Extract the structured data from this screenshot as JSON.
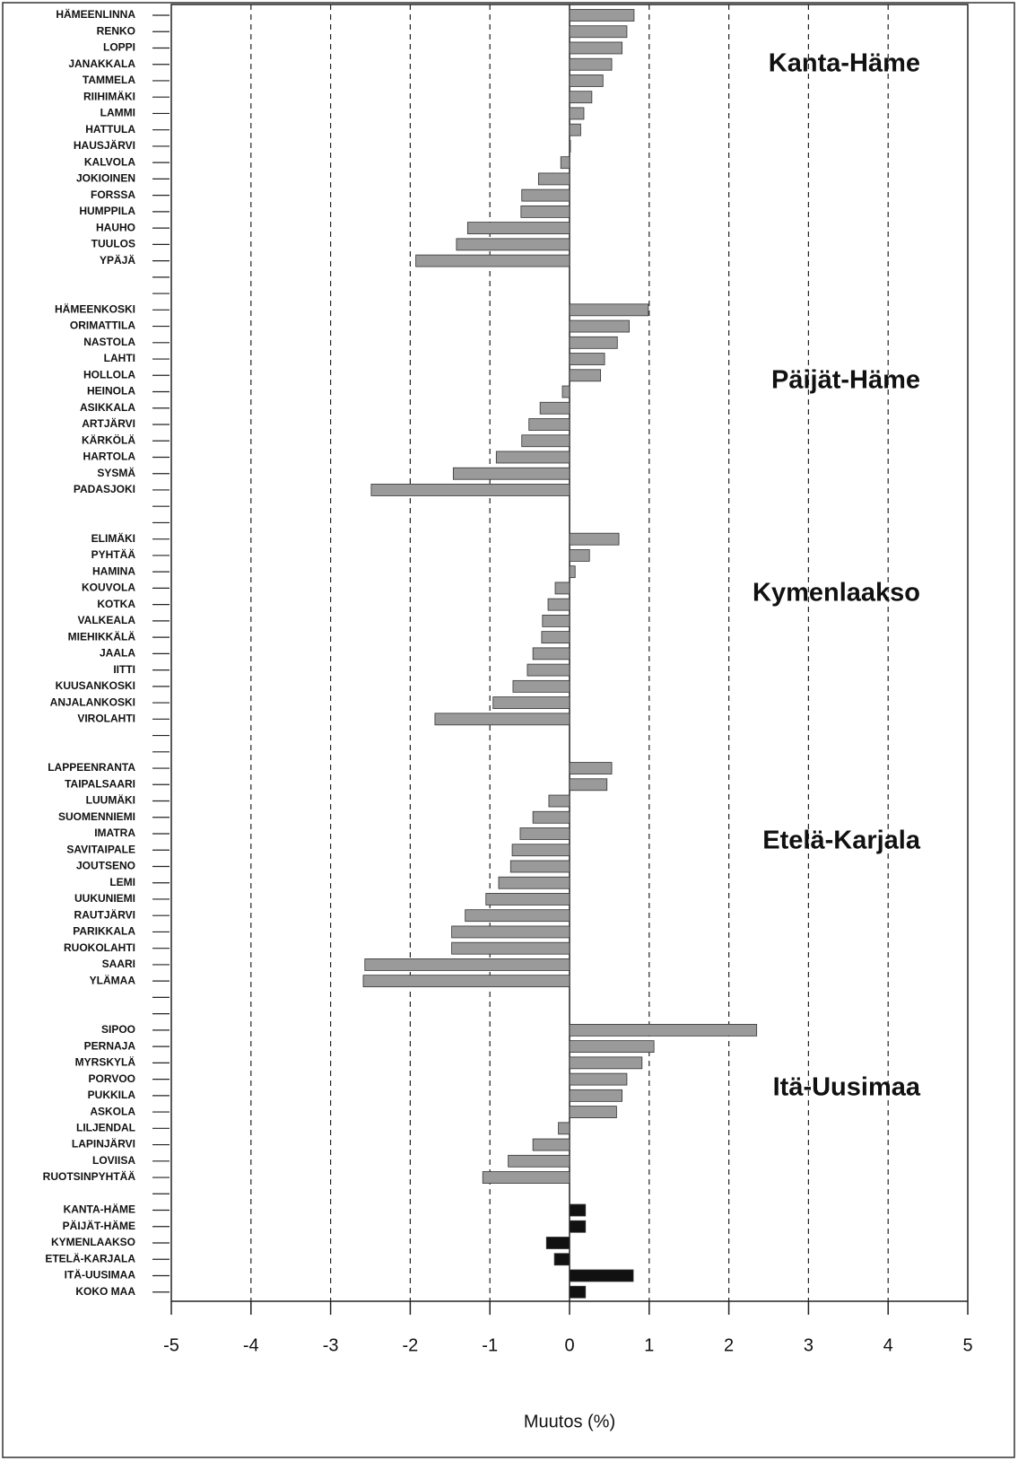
{
  "chart_data": {
    "type": "bar",
    "orientation": "horizontal",
    "xlabel": "Muutos (%)",
    "annotations": [
      "Kanta-Häme",
      "Päijät-Häme",
      "Kymenlaakso",
      "Etelä-Karjala",
      "Itä-Uusimaa"
    ],
    "categories": [
      "HÄMEENLINNA",
      "RENKO",
      "LOPPI",
      "JANAKKALA",
      "TAMMELA",
      "RIIHIMÄKI",
      "LAMMI",
      "HATTULA",
      "HAUSJÄRVI",
      "KALVOLA",
      "JOKIOINEN",
      "FORSSA",
      "HUMPPILA",
      "HAUHO",
      "TUULOS",
      "YPÄJÄ",
      null,
      null,
      "HÄMEENKOSKI",
      "ORIMATTILA",
      "NASTOLA",
      "LAHTI",
      "HOLLOLA",
      "HEINOLA",
      "ASIKKALA",
      "ARTJÄRVI",
      "KÄRKÖLÄ",
      "HARTOLA",
      "SYSMÄ",
      "PADASJOKI",
      null,
      null,
      "ELIMÄKI",
      "PYHTÄÄ",
      "HAMINA",
      "KOUVOLA",
      "KOTKA",
      "VALKEALA",
      "MIEHIKKÄLÄ",
      "JAALA",
      "IITTI",
      "KUUSANKOSKI",
      "ANJALANKOSKI",
      "VIROLAHTI",
      null,
      null,
      "LAPPEENRANTA",
      "TAIPALSAARI",
      "LUUMÄKI",
      "SUOMENNIEMI",
      "IMATRA",
      "SAVITAIPALE",
      "JOUTSENO",
      "LEMI",
      "UUKUNIEMI",
      "RAUTJÄRVI",
      "PARIKKALA",
      "RUOKOLAHTI",
      "SAARI",
      "YLÄMAA",
      null,
      null,
      "SIPOO",
      "PERNAJA",
      "MYRSKYLÄ",
      "PORVOO",
      "PUKKILA",
      "ASKOLA",
      "LILJENDAL",
      "LAPINJÄRVI",
      "LOVIISA",
      "RUOTSINPYHTÄÄ",
      null,
      "KANTA-HÄME",
      "PÄIJÄT-HÄME",
      "KYMENLAAKSO",
      "ETELÄ-KARJALA",
      "ITÄ-UUSIMAA",
      "KOKO MAA"
    ],
    "values": [
      0.81,
      0.72,
      0.66,
      0.53,
      0.42,
      0.28,
      0.18,
      0.14,
      0.0,
      -0.11,
      -0.39,
      -0.6,
      -0.61,
      -1.28,
      -1.42,
      -1.93,
      null,
      null,
      0.99,
      0.75,
      0.6,
      0.44,
      0.39,
      -0.09,
      -0.37,
      -0.51,
      -0.6,
      -0.92,
      -1.46,
      -2.49,
      null,
      null,
      0.62,
      0.25,
      0.07,
      -0.18,
      -0.27,
      -0.34,
      -0.35,
      -0.46,
      -0.53,
      -0.71,
      -0.96,
      -1.69,
      null,
      null,
      0.53,
      0.47,
      -0.26,
      -0.46,
      -0.62,
      -0.72,
      -0.74,
      -0.89,
      -1.05,
      -1.31,
      -1.48,
      -1.48,
      -2.57,
      -2.59,
      null,
      null,
      2.35,
      1.06,
      0.91,
      0.72,
      0.66,
      0.59,
      -0.14,
      -0.46,
      -0.77,
      -1.09,
      null,
      0.2,
      0.2,
      -0.29,
      -0.19,
      0.8,
      0.2
    ],
    "color": "#9a9a9a",
    "summary_color": "#111111",
    "summary_count": 6,
    "xlim": [
      -5,
      5
    ],
    "xticks": [
      -5,
      -4,
      -3,
      -2,
      -1,
      0,
      1,
      2,
      3,
      4,
      5
    ],
    "grid": true
  }
}
